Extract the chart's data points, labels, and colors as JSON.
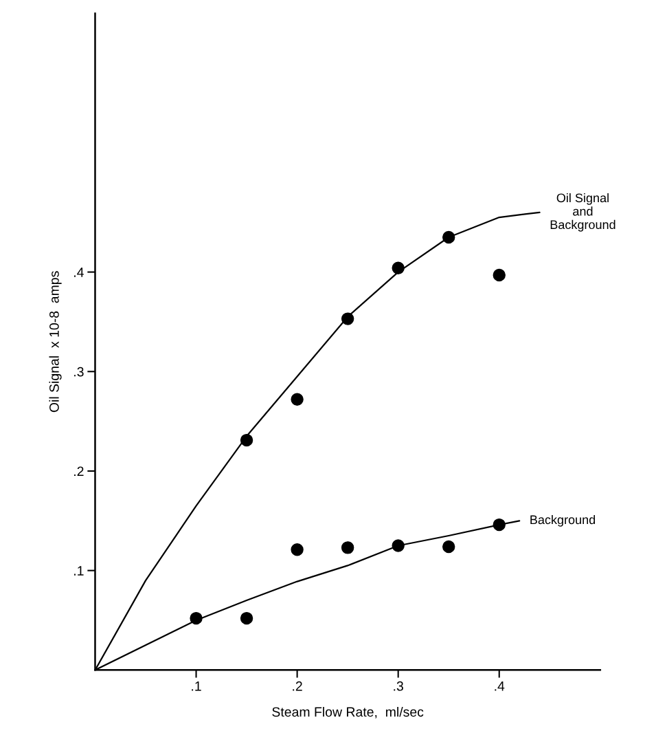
{
  "chart_data": {
    "type": "scatter",
    "xlabel": "Steam Flow Rate,  ml/sec",
    "ylabel": "Oil Signal  x 10-8  amps",
    "xlim": [
      0,
      0.5
    ],
    "ylim": [
      0,
      0.66
    ],
    "xticks": [
      {
        "value": 0.1,
        "label": ".1"
      },
      {
        "value": 0.2,
        "label": ".2"
      },
      {
        "value": 0.3,
        "label": ".3"
      },
      {
        "value": 0.4,
        "label": ".4"
      }
    ],
    "yticks": [
      {
        "value": 0.1,
        "label": ".1"
      },
      {
        "value": 0.2,
        "label": ".2"
      },
      {
        "value": 0.3,
        "label": ".3"
      },
      {
        "value": 0.4,
        "label": ".4"
      }
    ],
    "grid": false,
    "legend": false,
    "marker": "circle",
    "series": [
      {
        "color": "#000000",
        "x": [
          0.15,
          0.2,
          0.25,
          0.3,
          0.35,
          0.4
        ],
        "values": [
          0.231,
          0.272,
          0.353,
          0.404,
          0.435,
          0.397
        ]
      },
      {
        "color": "#000000",
        "x": [
          0.1,
          0.15,
          0.2,
          0.25,
          0.3,
          0.35,
          0.4
        ],
        "values": [
          0.052,
          0.052,
          0.121,
          0.123,
          0.125,
          0.124,
          0.146
        ]
      },
      {
        "type": "line",
        "name": "Oil Signal\nand\nBackground",
        "color": "#000000",
        "marker": "none",
        "x": [
          0,
          0.05,
          0.1,
          0.15,
          0.2,
          0.25,
          0.3,
          0.35,
          0.4,
          0.44
        ],
        "values": [
          0,
          0.09,
          0.165,
          0.235,
          0.295,
          0.355,
          0.4,
          0.435,
          0.455,
          0.46
        ]
      },
      {
        "type": "line",
        "name": "Background",
        "color": "#000000",
        "marker": "none",
        "x": [
          0,
          0.1,
          0.15,
          0.2,
          0.25,
          0.3,
          0.35,
          0.4,
          0.42
        ],
        "values": [
          0,
          0.05,
          0.07,
          0.089,
          0.105,
          0.125,
          0.135,
          0.146,
          0.15
        ]
      }
    ]
  }
}
